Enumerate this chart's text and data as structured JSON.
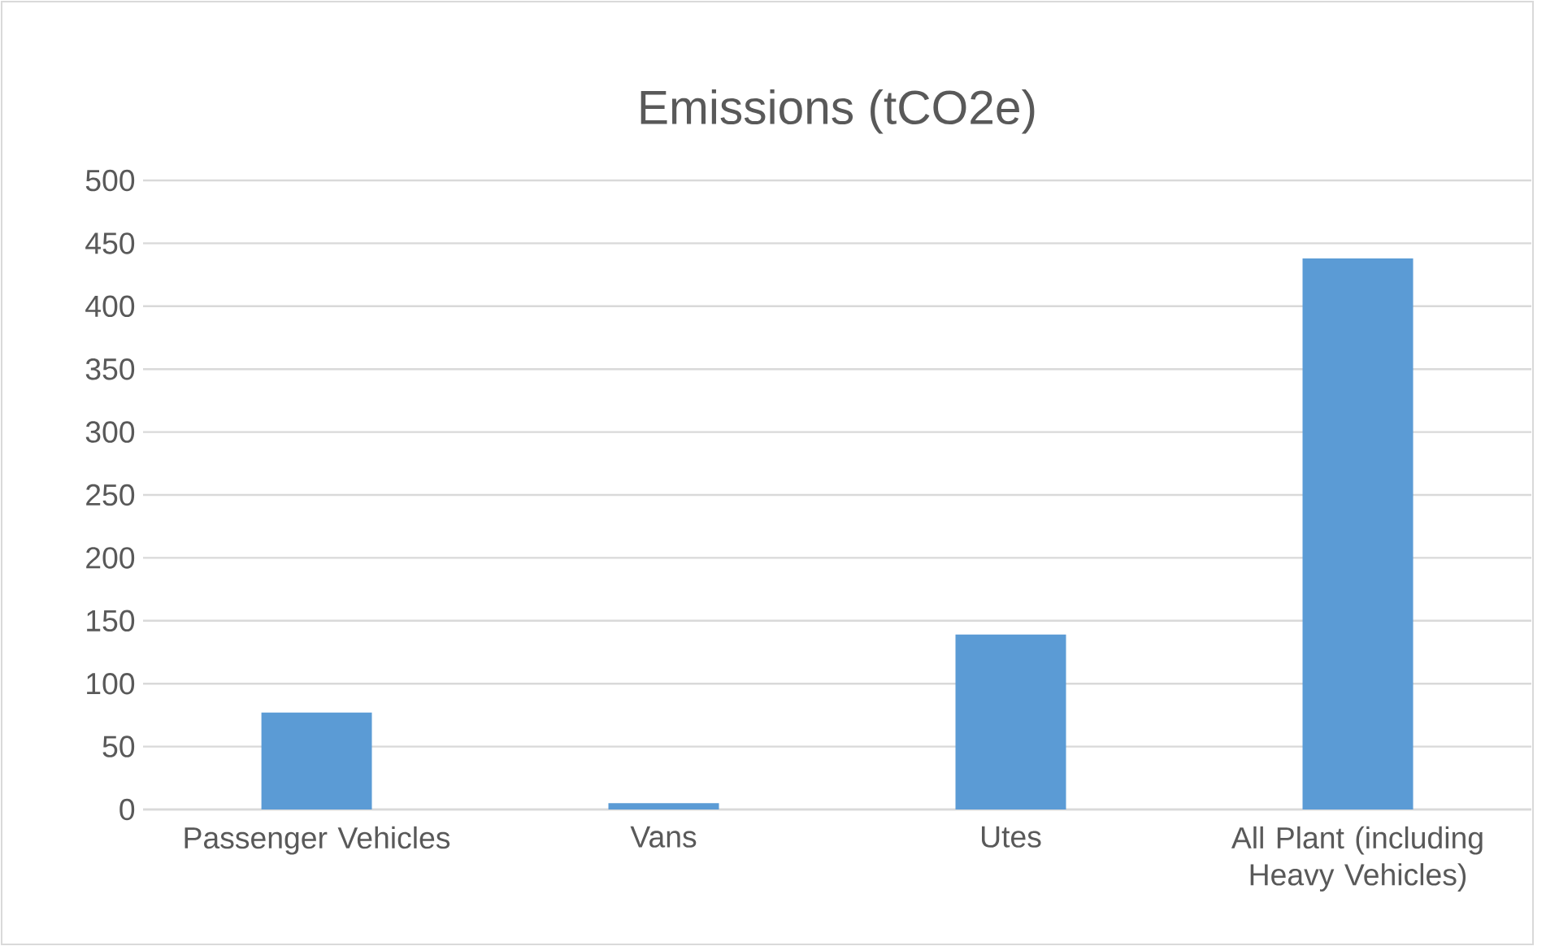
{
  "chart_data": {
    "type": "bar",
    "title": "Emissions (tCO2e)",
    "categories": [
      "Passenger Vehicles",
      "Vans",
      "Utes",
      "All Plant (including Heavy Vehicles)"
    ],
    "values": [
      77,
      5,
      139,
      438
    ],
    "color": "#5b9bd5",
    "ylim": [
      0,
      500
    ],
    "yticks": [
      0,
      50,
      100,
      150,
      200,
      250,
      300,
      350,
      400,
      450,
      500
    ],
    "grid": "y"
  }
}
